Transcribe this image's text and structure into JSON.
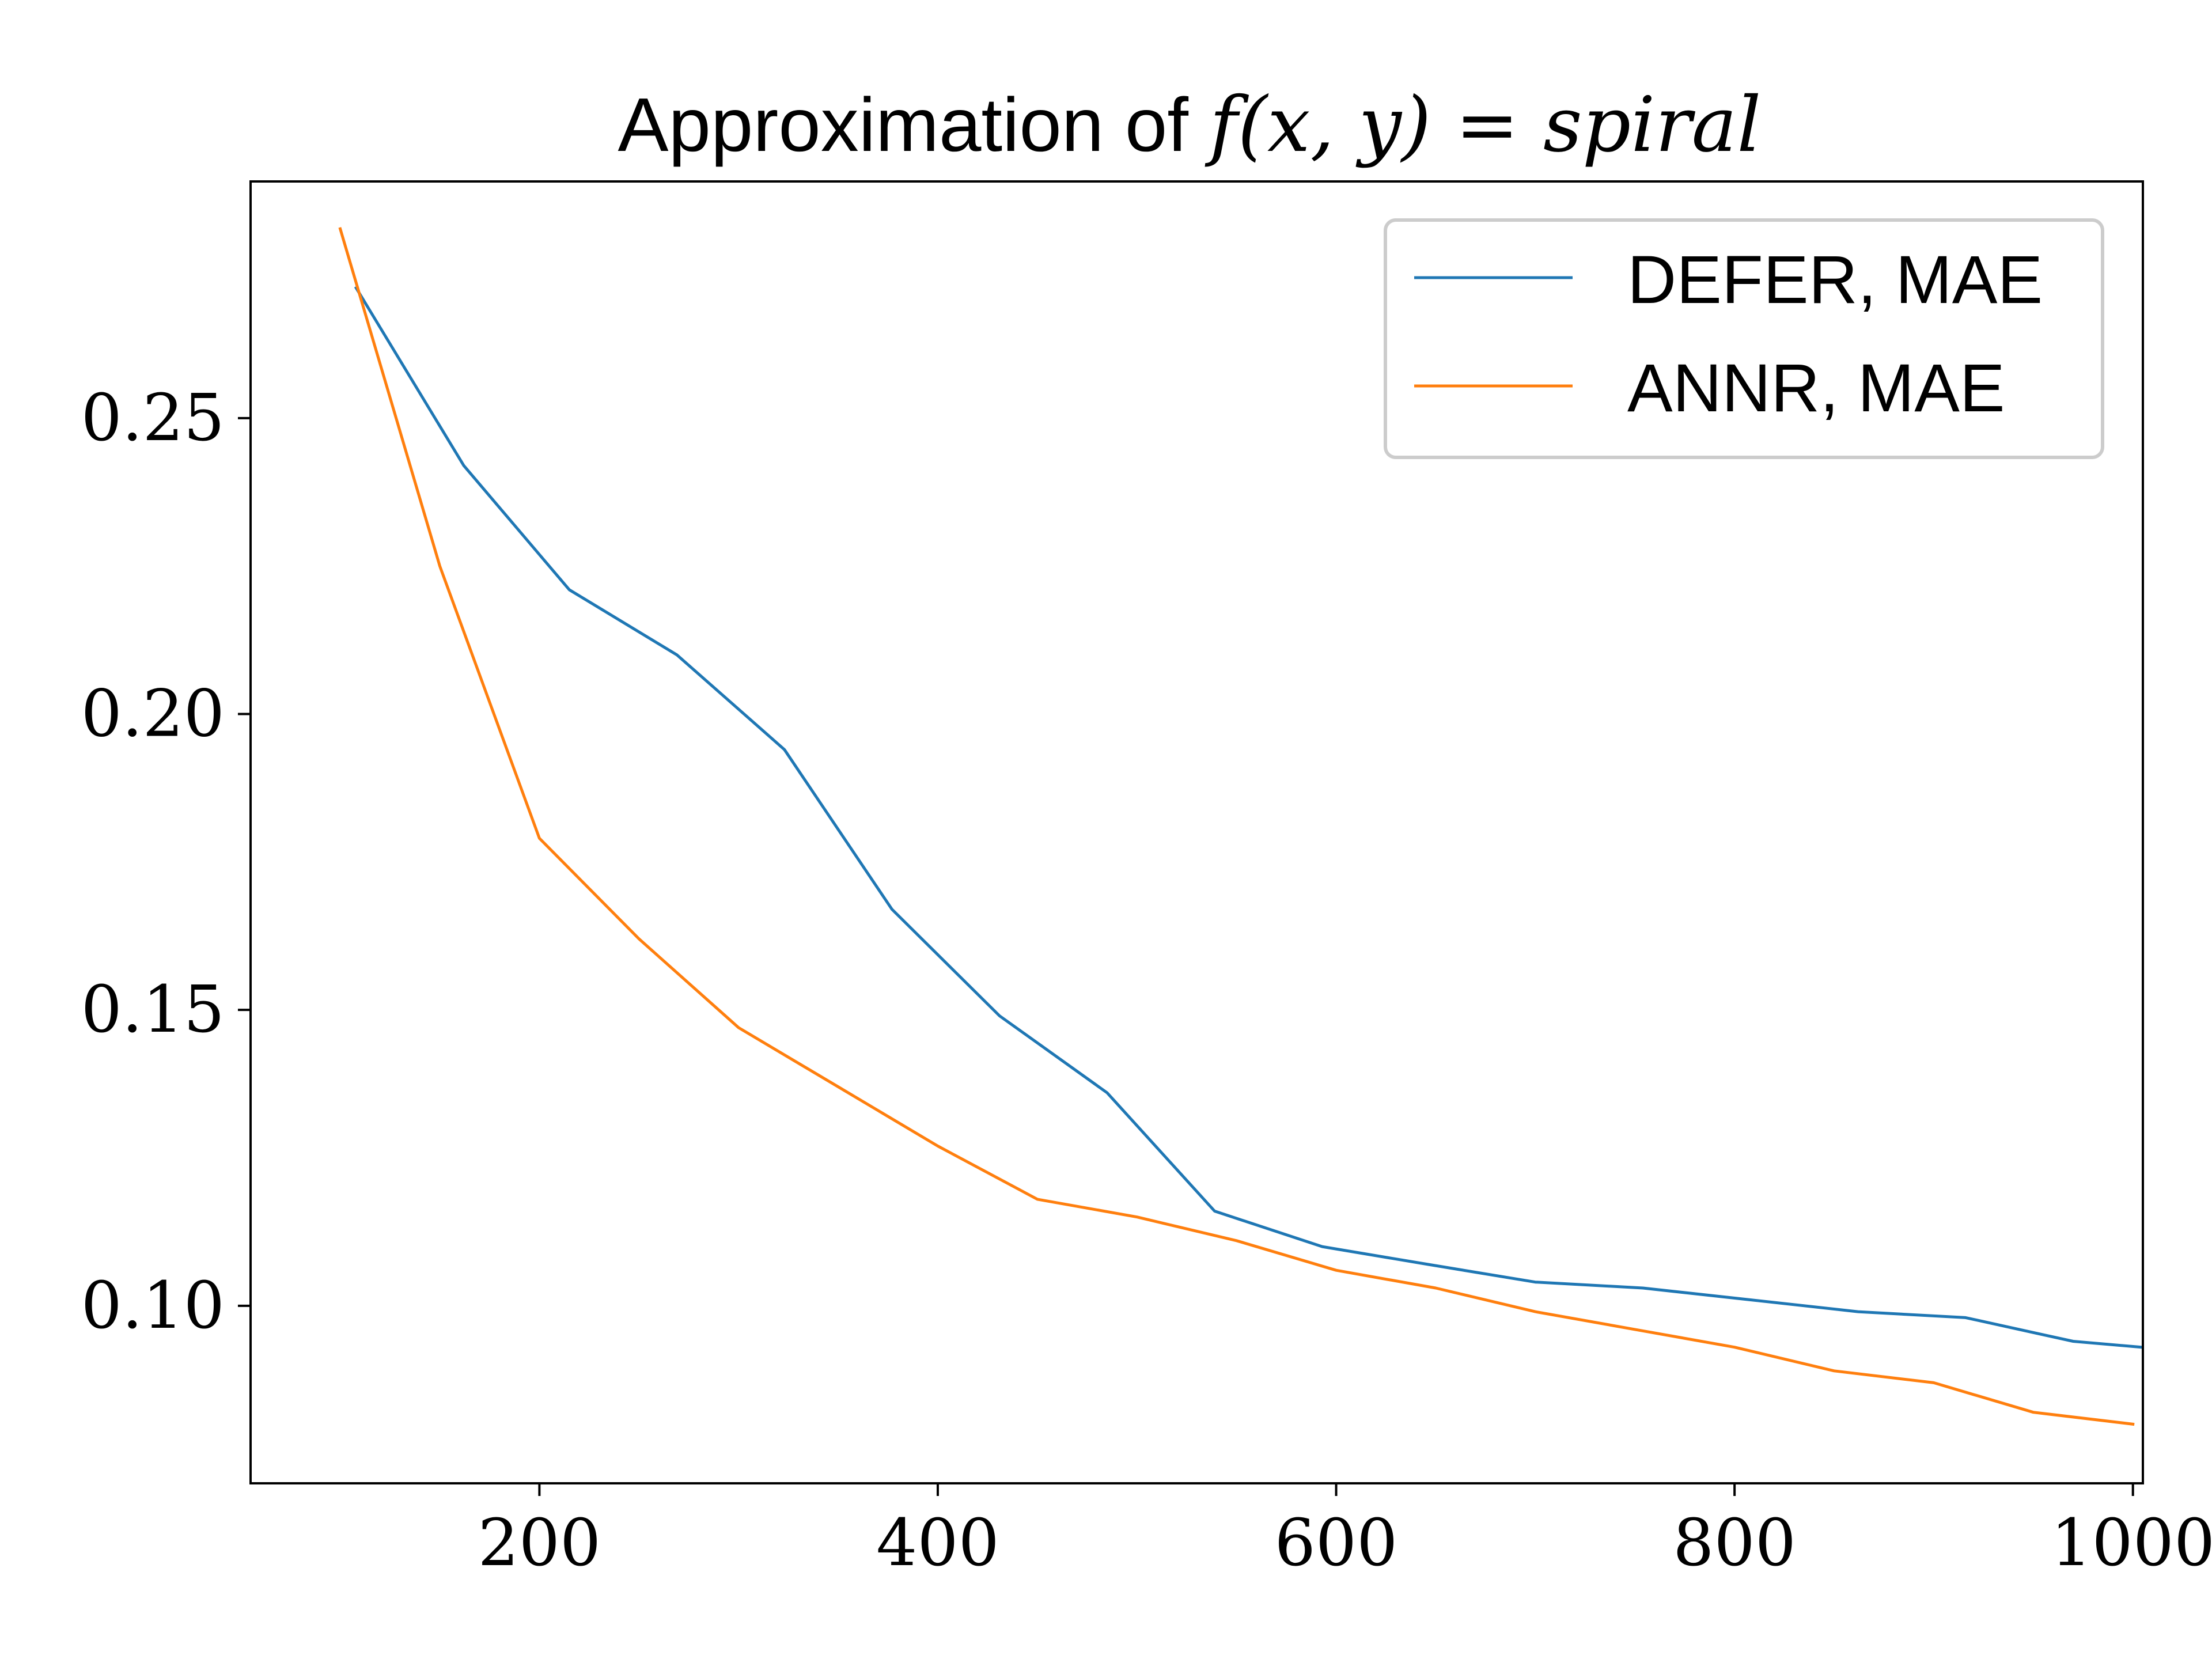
{
  "chart_data": {
    "type": "line",
    "title": "Approximation of f(x,y) = spiral",
    "title_parts": {
      "prefix": "Approximation of ",
      "math": "f(x, y) = spiral"
    },
    "xlabel": "",
    "ylabel": "",
    "xlim": [
      55,
      1005
    ],
    "ylim": [
      0.07,
      0.29
    ],
    "xticks": [
      200,
      400,
      600,
      800,
      1000
    ],
    "yticks": [
      0.1,
      0.15,
      0.2,
      0.25
    ],
    "xtick_labels": [
      "200",
      "400",
      "600",
      "800",
      "1000"
    ],
    "ytick_labels": [
      "0.10",
      "0.15",
      "0.20",
      "0.25"
    ],
    "grid": false,
    "legend_position": "upper right",
    "series": [
      {
        "name": "DEFER, MAE",
        "color": "#1f77b4",
        "x": [
          108,
          162,
          215,
          269,
          323,
          377,
          431,
          485,
          539,
          593,
          646,
          700,
          754,
          808,
          862,
          916,
          970,
          1004
        ],
        "y": [
          0.272,
          0.242,
          0.221,
          0.21,
          0.194,
          0.167,
          0.149,
          0.136,
          0.116,
          0.11,
          0.107,
          0.104,
          0.103,
          0.101,
          0.099,
          0.098,
          0.094,
          0.093
        ]
      },
      {
        "name": "ANNR, MAE",
        "color": "#ff7f0e",
        "x": [
          100,
          150,
          200,
          250,
          300,
          350,
          400,
          450,
          500,
          550,
          600,
          650,
          700,
          750,
          800,
          850,
          900,
          950,
          1000
        ],
        "y": [
          0.282,
          0.225,
          0.179,
          0.162,
          0.147,
          0.137,
          0.127,
          0.118,
          0.115,
          0.111,
          0.106,
          0.103,
          0.099,
          0.096,
          0.093,
          0.089,
          0.087,
          0.082,
          0.08
        ]
      }
    ]
  }
}
